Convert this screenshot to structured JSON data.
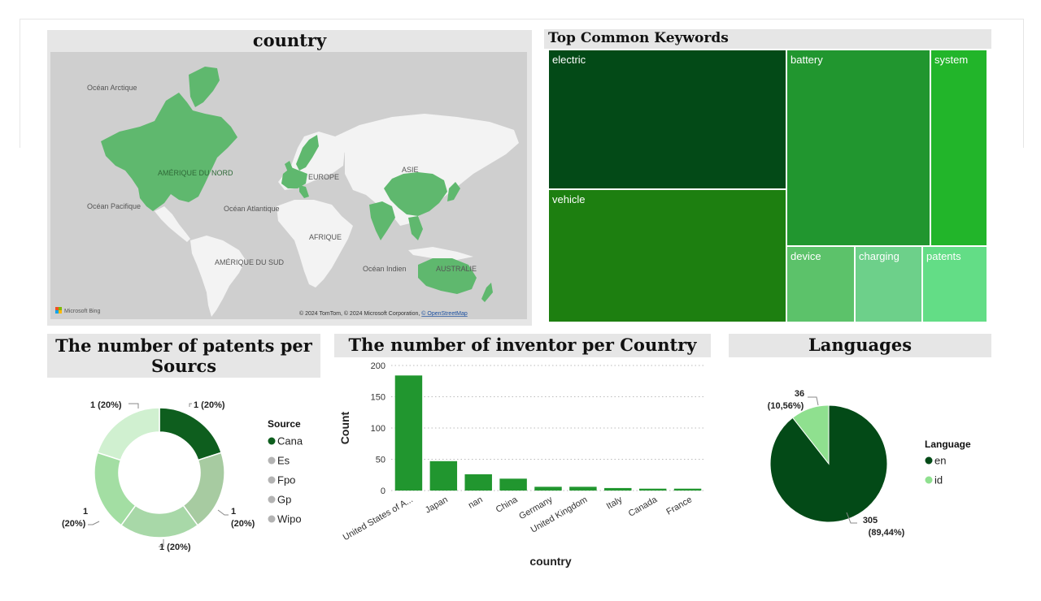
{
  "map": {
    "title": "country",
    "labels": [
      "Océan Arctique",
      "AMÉRIQUE DU NORD",
      "EUROPE",
      "ASIE",
      "Océan Pacifique",
      "Océan Atlantique",
      "AFRIQUE",
      "AMÉRIQUE DU SUD",
      "Océan Indien",
      "AUSTRALIE"
    ],
    "attribution": "© 2024 TomTom, © 2024 Microsoft Corporation, ",
    "attribution_link": "© OpenStreetMap",
    "logo": "Microsoft Bing",
    "colors": {
      "water": "#cfcfcf",
      "land": "#f3f3f3",
      "highlight": "#5fb86e"
    }
  },
  "chart_data": [
    {
      "type": "treemap",
      "title": "Top Common Keywords",
      "categories": [
        "electric",
        "vehicle",
        "battery",
        "system",
        "device",
        "charging",
        "patents"
      ],
      "colors": [
        "#034a17",
        "#1d7f10",
        "#21962f",
        "#22b52a",
        "#5cc26a",
        "#6dd08a",
        "#63dd86"
      ]
    },
    {
      "type": "pie",
      "donut": true,
      "title": "The number of patents per Sourcs",
      "legend_title": "Source",
      "legend_position": "right",
      "categories": [
        "Cana",
        "Es",
        "Fpo",
        "Gp",
        "Wipo"
      ],
      "values": [
        1,
        1,
        1,
        1,
        1
      ],
      "labels": [
        "1 (20%)",
        "1 (20%)",
        "1 (20%)",
        "1 (20%)",
        "1 (20%)"
      ],
      "colors": [
        "#0e5e1e",
        "#a7cba1",
        "#a8d8a8",
        "#a3dea3",
        "#d0f0d0"
      ],
      "legend_colors": [
        "#0e5e1e",
        "#b3b3b3",
        "#b3b3b3",
        "#b3b3b3",
        "#b3b3b3"
      ]
    },
    {
      "type": "bar",
      "title": "The number of inventor per Country",
      "categories": [
        "United States of A...",
        "Japan",
        "nan",
        "China",
        "Germany",
        "United Kingdom",
        "Italy",
        "Canada",
        "France"
      ],
      "values": [
        184,
        47,
        26,
        19,
        6,
        6,
        4,
        3,
        3
      ],
      "xlabel": "country",
      "ylabel": "Count",
      "ylim": [
        0,
        200
      ],
      "yticks": [
        0,
        50,
        100,
        150,
        200
      ],
      "grid": true,
      "color": "#21962f"
    },
    {
      "type": "pie",
      "title": "Languages",
      "legend_title": "Language",
      "legend_position": "right",
      "categories": [
        "en",
        "id"
      ],
      "values": [
        305,
        36
      ],
      "labels": [
        [
          "305",
          "(89,44%)"
        ],
        [
          "36",
          "(10,56%)"
        ]
      ],
      "colors": [
        "#034a17",
        "#8fe08f"
      ]
    }
  ]
}
